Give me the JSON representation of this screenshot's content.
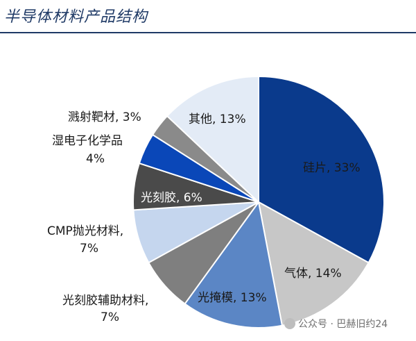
{
  "chart_data": {
    "type": "pie",
    "title": "半导体材料产品结构",
    "slices": [
      {
        "name": "硅片",
        "value": 33,
        "label": "硅片, 33%",
        "color": "#0a3a8c"
      },
      {
        "name": "气体",
        "value": 14,
        "label": "气体, 14%",
        "color": "#c7c7c7"
      },
      {
        "name": "光掩模",
        "value": 13,
        "label": "光掩模, 13%",
        "color": "#5b86c5"
      },
      {
        "name": "光刻胶辅助材料",
        "value": 7,
        "label_lines": [
          "光刻胶辅助材料,",
          "7%"
        ],
        "color": "#7f7f7f"
      },
      {
        "name": "CMP抛光材料",
        "value": 7,
        "label_lines": [
          "CMP抛光材料,",
          "7%"
        ],
        "color": "#c5d6ee"
      },
      {
        "name": "光刻胶",
        "value": 6,
        "label": "光刻胶, 6%",
        "color": "#4a4a4a"
      },
      {
        "name": "湿电子化学品",
        "value": 4,
        "label_lines": [
          "湿电子化学品",
          "4%"
        ],
        "color": "#0a47b8"
      },
      {
        "name": "溅射靶材",
        "value": 3,
        "label": "溅射靶材, 3%",
        "color": "#8a8a8a"
      },
      {
        "name": "其他",
        "value": 13,
        "label": "其他, 13%",
        "color": "#e3ebf6"
      }
    ]
  },
  "watermark": "公众号 · 巴赫旧约24"
}
